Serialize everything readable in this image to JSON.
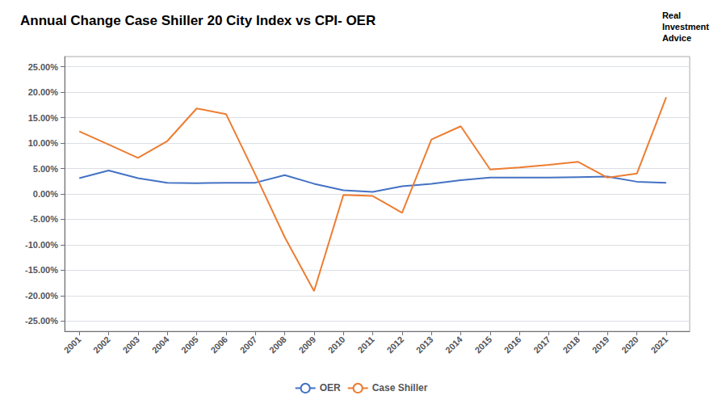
{
  "chart_data": {
    "type": "line",
    "title": "Annual Change Case Shiller 20 City Index vs CPI- OER",
    "annotations": [
      "Real\nInvestment\nAdvice"
    ],
    "x": [
      2001,
      2002,
      2003,
      2004,
      2005,
      2006,
      2007,
      2008,
      2009,
      2010,
      2011,
      2012,
      2013,
      2014,
      2015,
      2016,
      2017,
      2018,
      2019,
      2020,
      2021
    ],
    "xlim": [
      2000.5,
      2021.8
    ],
    "xticks": [
      2001,
      2002,
      2003,
      2004,
      2005,
      2006,
      2007,
      2008,
      2009,
      2010,
      2011,
      2012,
      2013,
      2014,
      2015,
      2016,
      2017,
      2018,
      2019,
      2020,
      2021
    ],
    "ylim": [
      -0.27,
      0.27
    ],
    "yticks": [
      {
        "value": -0.25,
        "label": "-25.00%"
      },
      {
        "value": -0.2,
        "label": "-20.00%"
      },
      {
        "value": -0.15,
        "label": "-15.00%"
      },
      {
        "value": -0.1,
        "label": "-10.00%"
      },
      {
        "value": -0.05,
        "label": "-5.00%"
      },
      {
        "value": 0.0,
        "label": "0.00%"
      },
      {
        "value": 0.05,
        "label": "5.00%"
      },
      {
        "value": 0.1,
        "label": "10.00%"
      },
      {
        "value": 0.15,
        "label": "15.00%"
      },
      {
        "value": 0.2,
        "label": "20.00%"
      },
      {
        "value": 0.25,
        "label": "25.00%"
      }
    ],
    "series": [
      {
        "name": "OER",
        "color": "#4472C4",
        "values": [
          0.031,
          0.046,
          0.031,
          0.022,
          0.021,
          0.022,
          0.022,
          0.037,
          0.02,
          0.007,
          0.004,
          0.015,
          0.02,
          0.027,
          0.032,
          0.032,
          0.032,
          0.033,
          0.034,
          0.024,
          0.022
        ]
      },
      {
        "name": "Case Shiller",
        "color": "#ED7D31",
        "values": [
          0.123,
          0.097,
          0.071,
          0.104,
          0.168,
          0.157,
          0.038,
          -0.085,
          -0.191,
          -0.002,
          -0.004,
          -0.037,
          0.107,
          0.133,
          0.048,
          0.052,
          0.057,
          0.063,
          0.032,
          0.04,
          0.19
        ]
      }
    ],
    "grid": true,
    "legend": "bottom"
  }
}
